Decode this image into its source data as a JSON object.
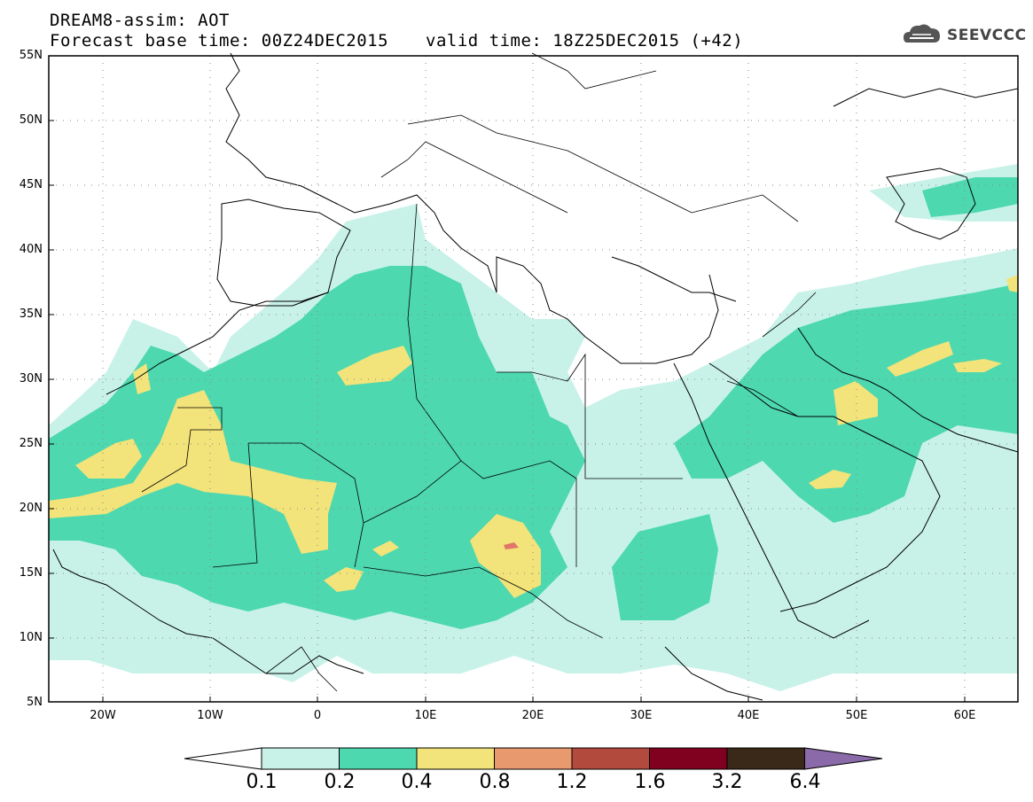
{
  "header": {
    "title": "DREAM8-assim: AOT",
    "base_time": "Forecast base time: 00Z24DEC2015",
    "valid_time": "valid time: 18Z25DEC2015 (+42)"
  },
  "logo": {
    "text": "SEEVCCC",
    "icon": "cloud-icon"
  },
  "map": {
    "lat_labels": [
      "55N",
      "50N",
      "45N",
      "40N",
      "35N",
      "30N",
      "25N",
      "20N",
      "15N",
      "10N",
      "5N"
    ],
    "lon_labels": [
      "20W",
      "10W",
      "0",
      "10E",
      "20E",
      "30E",
      "40E",
      "50E",
      "60E"
    ],
    "lat_range": [
      5,
      55
    ],
    "lon_range": [
      -25,
      65
    ]
  },
  "colorbar": {
    "labels": [
      "0.1",
      "0.2",
      "0.4",
      "0.8",
      "1.2",
      "1.6",
      "3.2",
      "6.4"
    ],
    "colors": [
      "#ffffff",
      "#c8f2e8",
      "#4dd8b0",
      "#f2e37a",
      "#e89a6e",
      "#b24a3e",
      "#800020",
      "#3a2818",
      "#8a6aa8"
    ]
  }
}
